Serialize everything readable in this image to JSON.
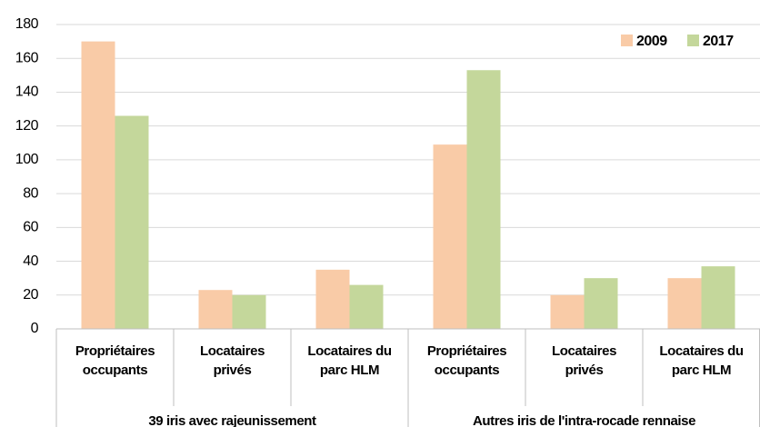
{
  "chart_data": {
    "type": "bar",
    "categories": [
      "Propriétaires\noccupants",
      "Locataires\nprivés",
      "Locataires du\nparc HLM",
      "Propriétaires\noccupants",
      "Locataires\nprivés",
      "Locataires du\nparc HLM"
    ],
    "groups": [
      "39 iris avec rajeunissement",
      "Autres iris de l'intra-rocade rennaise"
    ],
    "series": [
      {
        "name": "2009",
        "color": "#f9cba7",
        "values": [
          170,
          23,
          35,
          109,
          20,
          30
        ]
      },
      {
        "name": "2017",
        "color": "#c4d79b",
        "values": [
          126,
          20,
          26,
          153,
          30,
          37
        ]
      }
    ],
    "ylim": [
      0,
      180
    ],
    "yticks": [
      0,
      20,
      40,
      60,
      80,
      100,
      120,
      140,
      160,
      180
    ],
    "grid": true,
    "legend": "top-right"
  }
}
